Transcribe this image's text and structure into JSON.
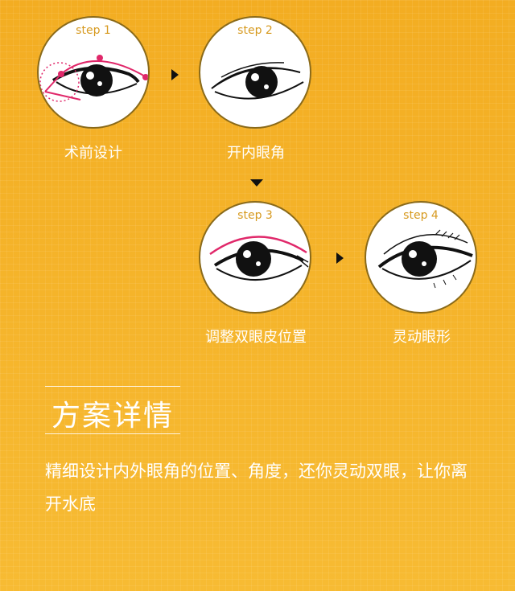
{
  "steps": [
    {
      "label": "step 1",
      "caption": "术前设计"
    },
    {
      "label": "step 2",
      "caption": "开内眼角"
    },
    {
      "label": "step 3",
      "caption": "调整双眼皮位置"
    },
    {
      "label": "step 4",
      "caption": "灵动眼形"
    }
  ],
  "details": {
    "title": "方案详情",
    "description": "精细设计内外眼角的位置、角度，还你灵动双眼，让你离开水底"
  },
  "colors": {
    "background": "#f6b52a",
    "accent_pink": "#e0286a",
    "step_text": "#d79a20"
  }
}
